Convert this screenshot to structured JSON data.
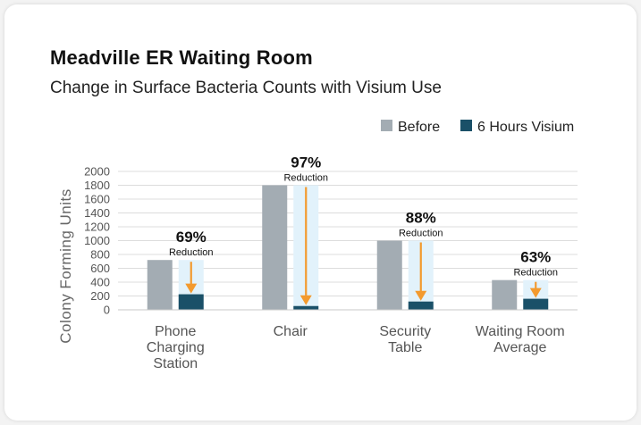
{
  "header": {
    "title": "Meadville ER Waiting Room",
    "subtitle": "Change in Surface Bacteria Counts with Visium Use"
  },
  "colors": {
    "before": "#a3acb3",
    "after": "#1a5068",
    "highlight": "#e2f2fb",
    "arrow": "#f39a2e",
    "grid": "#dcdcdc"
  },
  "chart_data": {
    "type": "bar",
    "title": "Meadville ER Waiting Room",
    "subtitle": "Change in Surface Bacteria Counts with Visium Use",
    "xlabel": "",
    "ylabel": "Colony Forming Units",
    "ylim": [
      0,
      2000
    ],
    "yticks": [
      0,
      200,
      400,
      600,
      800,
      1000,
      1200,
      1400,
      1600,
      1800,
      2000
    ],
    "grid": true,
    "legend_position": "top-right",
    "categories": [
      [
        "Phone",
        "Charging",
        "Station"
      ],
      [
        "Chair"
      ],
      [
        "Security",
        "Table"
      ],
      [
        "Waiting Room",
        "Average"
      ]
    ],
    "series": [
      {
        "name": "Before",
        "values": [
          720,
          1800,
          1000,
          430
        ]
      },
      {
        "name": "6 Hours Visium",
        "values": [
          225,
          55,
          120,
          160
        ]
      }
    ],
    "annotations": [
      {
        "percent": "69%",
        "text": "Reduction"
      },
      {
        "percent": "97%",
        "text": "Reduction"
      },
      {
        "percent": "88%",
        "text": "Reduction"
      },
      {
        "percent": "63%",
        "text": "Reduction"
      }
    ]
  }
}
